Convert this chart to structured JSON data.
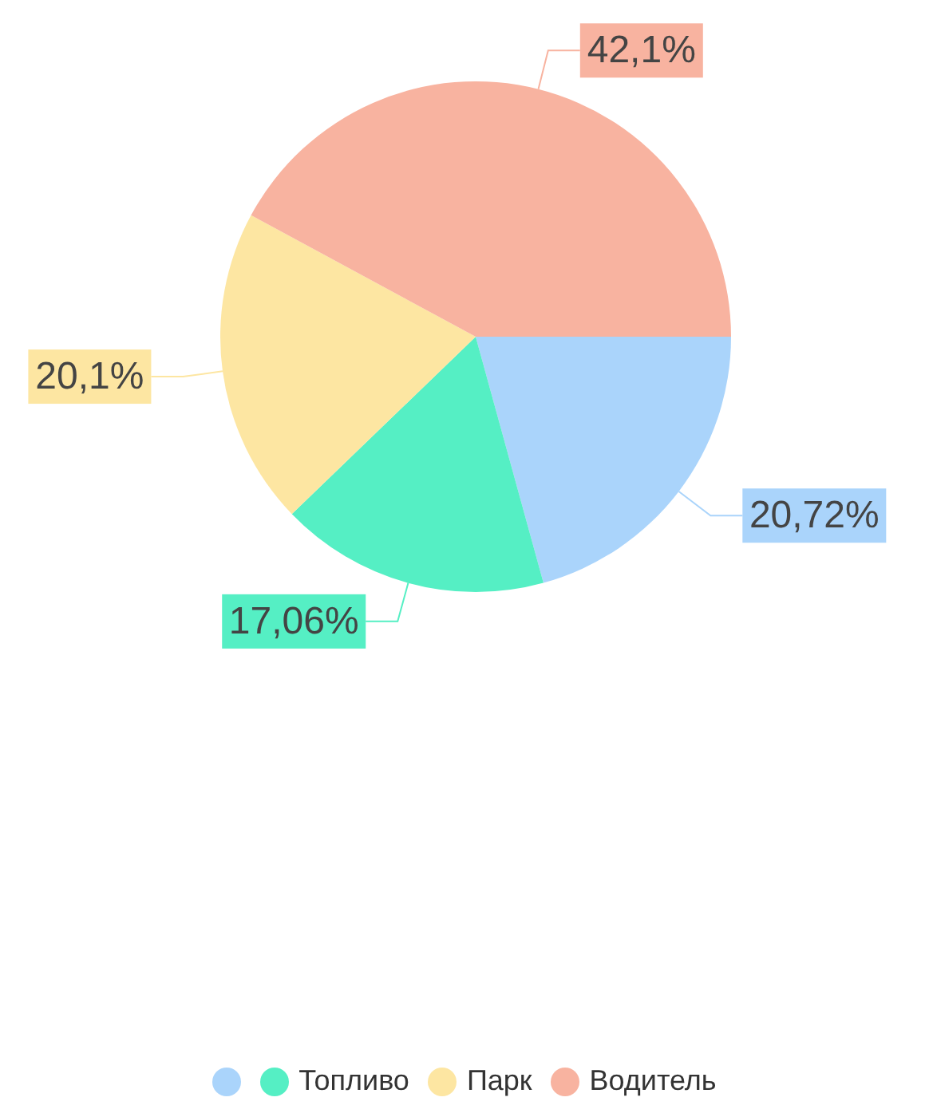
{
  "chart_data": {
    "type": "pie",
    "categories": [
      null,
      "Топливо",
      "Парк",
      "Водитель"
    ],
    "values": [
      20.72,
      17.06,
      20.1,
      42.1
    ],
    "value_labels": [
      "20,72%",
      "17,06%",
      "20,1%",
      "42,1%"
    ],
    "colors": [
      "#aad4fb",
      "#55efc4",
      "#fde6a2",
      "#f8b3a0"
    ],
    "legend": "bottom"
  }
}
